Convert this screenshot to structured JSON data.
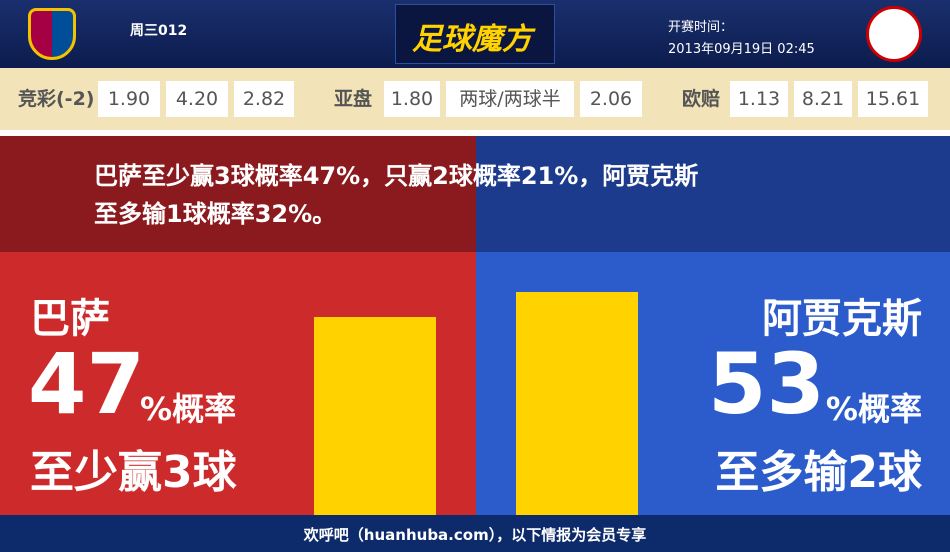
{
  "header": {
    "match_code": "周三012",
    "brand": "足球魔方",
    "kickoff_label": "开赛时间：",
    "kickoff_time": "2013年09月19日 02:45"
  },
  "odds": [
    {
      "label": "竞彩(-2)",
      "values": [
        "1.90",
        "4.20",
        "2.82"
      ]
    },
    {
      "label": "亚盘",
      "values": [
        "1.80",
        "两球/两球半",
        "2.06"
      ]
    },
    {
      "label": "欧赔",
      "values": [
        "1.13",
        "8.21",
        "15.61"
      ]
    }
  ],
  "summary": [
    "巴萨至少赢3球概率47%，只赢2球概率21%，阿贾克斯",
    "至多输1球概率32%。"
  ],
  "left": {
    "team": "巴萨",
    "percent": 47,
    "percent_suffix": "%概率",
    "outcome": "至少赢3球"
  },
  "right": {
    "team": "阿贾克斯",
    "percent": 53,
    "percent_suffix": "%概率",
    "outcome": "至多输2球"
  },
  "footer": "欢呼吧（huanhuba.com），以下情报为会员专享"
}
